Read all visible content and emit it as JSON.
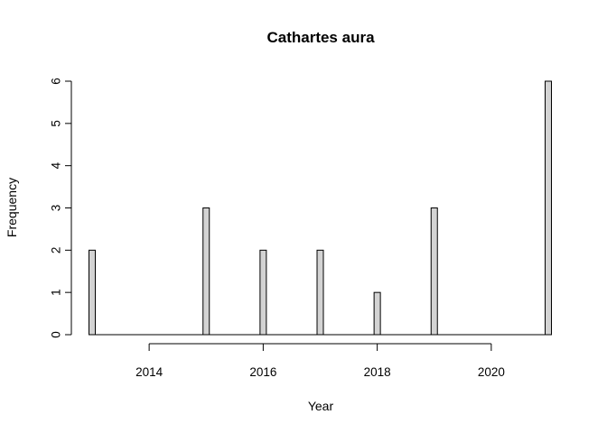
{
  "chart_data": {
    "type": "bar",
    "title": "Cathartes aura",
    "xlabel": "Year",
    "ylabel": "Frequency",
    "x": [
      2013,
      2015,
      2016,
      2017,
      2018,
      2019,
      2021
    ],
    "values": [
      2,
      3,
      2,
      2,
      1,
      3,
      6
    ],
    "xlim": [
      2013,
      2021
    ],
    "ylim": [
      0,
      6
    ],
    "xticks": [
      2014,
      2016,
      2018,
      2020
    ],
    "yticks": [
      0,
      1,
      2,
      3,
      4,
      5,
      6
    ],
    "grid": false,
    "bar_color": "#d3d3d3",
    "edge_color": "#000000"
  }
}
